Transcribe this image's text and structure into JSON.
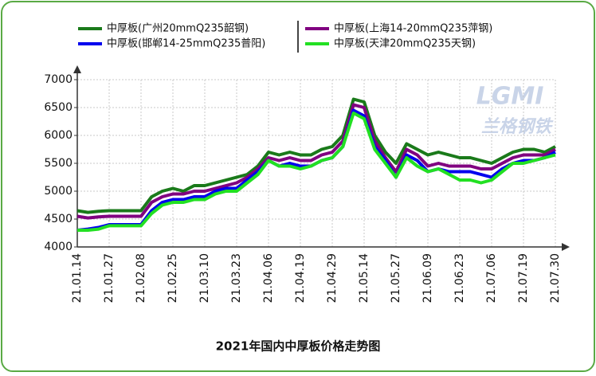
{
  "chart_data": {
    "type": "line",
    "title": "2021年国内中厚板价格走势图",
    "watermark": "LGMI",
    "watermark_subtitle": "兰格钢铁",
    "categories": [
      "21.01.14",
      null,
      null,
      "21.01.27",
      null,
      null,
      "21.02.08",
      null,
      null,
      "21.02.25",
      null,
      null,
      "21.03.10",
      null,
      null,
      "21.03.23",
      null,
      null,
      "21.04.06",
      null,
      null,
      "21.04.19",
      null,
      null,
      "21.04.29",
      null,
      null,
      "21.05.14",
      null,
      null,
      "21.05.27",
      null,
      null,
      "21.06.09",
      null,
      null,
      "21.06.23",
      null,
      null,
      "21.07.06",
      null,
      null,
      "21.07.19",
      null,
      null,
      "21.07.30"
    ],
    "series": [
      {
        "name": "中厚板(广州20mmQ235韶钢)",
        "color": "#1a7a1a",
        "values": [
          4650,
          4620,
          4640,
          4650,
          4650,
          4650,
          4650,
          4900,
          5000,
          5050,
          5000,
          5100,
          5100,
          5150,
          5200,
          5250,
          5300,
          5450,
          5700,
          5650,
          5700,
          5650,
          5650,
          5750,
          5800,
          6000,
          6650,
          6600,
          6000,
          5700,
          5500,
          5850,
          5750,
          5650,
          5700,
          5650,
          5600,
          5600,
          5550,
          5500,
          5600,
          5700,
          5750,
          5750,
          5700,
          5800
        ]
      },
      {
        "name": "中厚板(上海14-20mmQ235萍钢)",
        "color": "#800080",
        "values": [
          4550,
          4520,
          4540,
          4550,
          4550,
          4550,
          4550,
          4800,
          4900,
          4950,
          4950,
          5000,
          5000,
          5050,
          5100,
          5150,
          5250,
          5400,
          5600,
          5550,
          5600,
          5550,
          5550,
          5650,
          5700,
          5900,
          6550,
          6500,
          5900,
          5600,
          5350,
          5750,
          5650,
          5450,
          5500,
          5450,
          5450,
          5450,
          5400,
          5400,
          5500,
          5600,
          5650,
          5650,
          5650,
          5750
        ]
      },
      {
        "name": "中厚板(邯郸14-25mmQ235普阳)",
        "color": "#0000ee",
        "values": [
          4300,
          4320,
          4350,
          4400,
          4400,
          4400,
          4400,
          4650,
          4800,
          4850,
          4850,
          4900,
          4900,
          5000,
          5050,
          5050,
          5200,
          5350,
          5550,
          5450,
          5500,
          5450,
          5450,
          5550,
          5600,
          5800,
          6450,
          6350,
          5800,
          5550,
          5250,
          5650,
          5550,
          5350,
          5400,
          5350,
          5350,
          5350,
          5300,
          5250,
          5400,
          5500,
          5550,
          5550,
          5600,
          5700
        ]
      },
      {
        "name": "中厚板(天津20mmQ235天钢)",
        "color": "#22e022",
        "values": [
          4300,
          4300,
          4320,
          4380,
          4380,
          4380,
          4380,
          4600,
          4750,
          4800,
          4800,
          4850,
          4850,
          4950,
          5000,
          5000,
          5150,
          5300,
          5550,
          5450,
          5450,
          5400,
          5450,
          5550,
          5600,
          5800,
          6400,
          6300,
          5750,
          5500,
          5250,
          5600,
          5450,
          5350,
          5400,
          5300,
          5200,
          5200,
          5150,
          5200,
          5350,
          5500,
          5500,
          5550,
          5600,
          5650
        ]
      }
    ],
    "ylim": [
      4000,
      7000
    ],
    "yticks": [
      4000,
      4500,
      5000,
      5500,
      6000,
      6500,
      7000
    ],
    "grid": true
  }
}
